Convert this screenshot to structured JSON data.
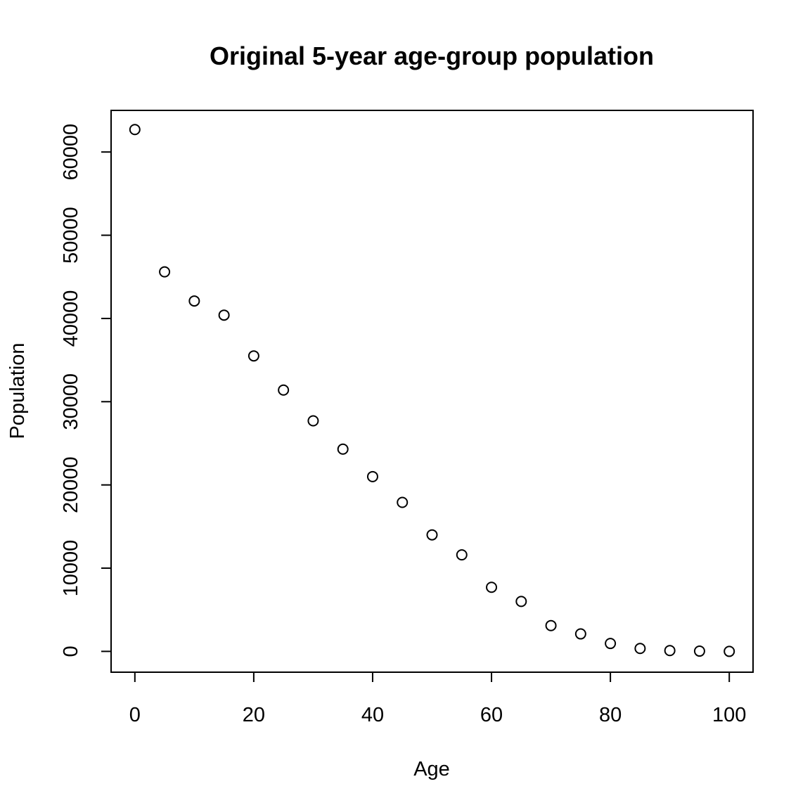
{
  "chart_data": {
    "type": "scatter",
    "title": "Original 5-year age-group population",
    "xlabel": "Age",
    "ylabel": "Population",
    "xlim": [
      -4,
      104
    ],
    "ylim": [
      -2500,
      65000
    ],
    "x_ticks": [
      0,
      20,
      40,
      60,
      80,
      100
    ],
    "y_ticks": [
      0,
      10000,
      20000,
      30000,
      40000,
      50000,
      60000
    ],
    "x_tick_labels": [
      "0",
      "20",
      "40",
      "60",
      "80",
      "100"
    ],
    "y_tick_labels": [
      "0",
      "10000",
      "20000",
      "30000",
      "40000",
      "50000",
      "60000"
    ],
    "grid": false,
    "marker": "open-circle",
    "x": [
      0,
      5,
      10,
      15,
      20,
      25,
      30,
      35,
      40,
      45,
      50,
      55,
      60,
      65,
      70,
      75,
      80,
      85,
      90,
      95,
      100
    ],
    "y": [
      62700,
      45600,
      42100,
      40400,
      35500,
      31400,
      27700,
      24300,
      21000,
      17900,
      14000,
      11600,
      7700,
      6000,
      3100,
      2100,
      950,
      350,
      100,
      30,
      0
    ]
  }
}
